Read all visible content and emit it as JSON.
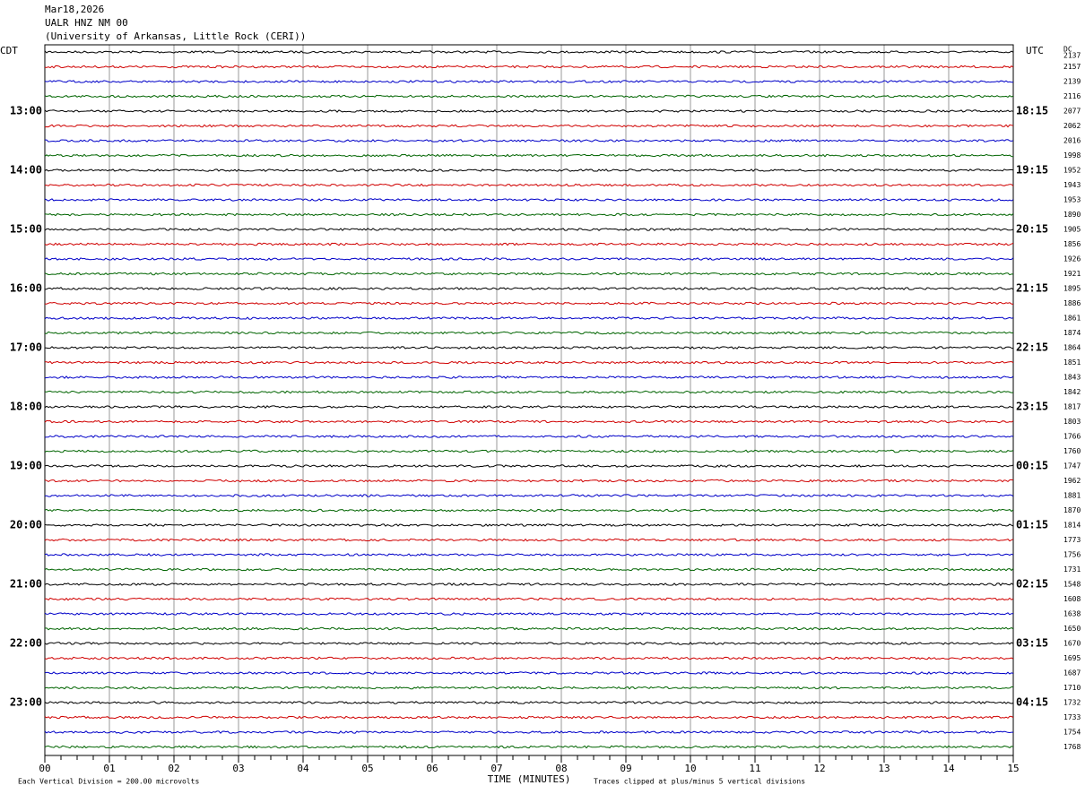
{
  "header": {
    "date": "Mar18,2026",
    "station": "UALR HNZ NM 00",
    "network": "(University of Arkansas, Little Rock (CERI))"
  },
  "left_axis": {
    "title": "CDT",
    "labels": [
      "13:00",
      "14:00",
      "15:00",
      "16:00",
      "17:00",
      "18:00",
      "19:00",
      "20:00",
      "21:00",
      "22:00",
      "23:00"
    ]
  },
  "right_axis": {
    "title": "UTC",
    "labels": [
      "18:15",
      "19:15",
      "20:15",
      "21:15",
      "22:15",
      "23:15",
      "00:15",
      "01:15",
      "02:15",
      "03:15",
      "04:15"
    ]
  },
  "dc": {
    "title": "DC",
    "values": [
      2137,
      2157,
      2139,
      2116,
      2077,
      2062,
      2016,
      1998,
      1952,
      1943,
      1953,
      1890,
      1905,
      1856,
      1926,
      1921,
      1895,
      1886,
      1861,
      1874,
      1864,
      1851,
      1843,
      1842,
      1817,
      1803,
      1766,
      1760,
      1747,
      1962,
      1881,
      1870,
      1814,
      1773,
      1756,
      1731,
      1548,
      1608,
      1638,
      1650,
      1670,
      1695,
      1687,
      1710,
      1732,
      1733,
      1754,
      1768
    ]
  },
  "trace_colors": [
    "#000000",
    "#d00000",
    "#0000c8",
    "#006400"
  ],
  "x_axis": {
    "title": "TIME (MINUTES)",
    "ticks": [
      "00",
      "01",
      "02",
      "03",
      "04",
      "05",
      "06",
      "07",
      "08",
      "09",
      "10",
      "11",
      "12",
      "13",
      "14",
      "15"
    ]
  },
  "footer": {
    "scale": "Each Vertical Division =  200.00 microvolts",
    "clip": "Traces clipped at plus/minus 5 vertical divisions"
  }
}
